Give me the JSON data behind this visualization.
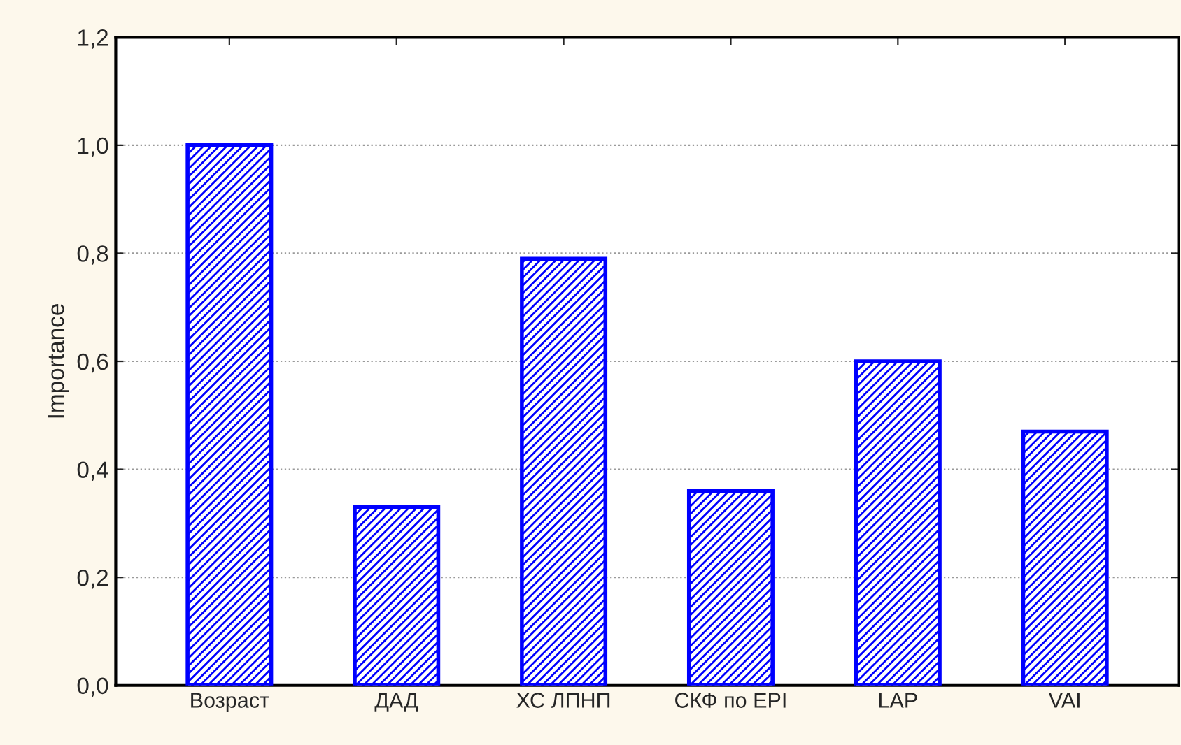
{
  "chart_data": {
    "type": "bar",
    "ylabel": "Importance",
    "categories": [
      "Возраст",
      "ДАД",
      "ХС ЛПНП",
      "СКФ по EPI",
      "LAP",
      "VAI"
    ],
    "values": [
      1.0,
      0.33,
      0.79,
      0.36,
      0.6,
      0.47
    ],
    "color": "#0000ff",
    "ylim": [
      0,
      1.2
    ],
    "yticks": [
      {
        "value": 0,
        "label": "0,0"
      },
      {
        "value": 0.2,
        "label": "0,2"
      },
      {
        "value": 0.4,
        "label": "0,4"
      },
      {
        "value": 0.6,
        "label": "0,6"
      },
      {
        "value": 0.8,
        "label": "0,8"
      },
      {
        "value": 1.0,
        "label": "1,0"
      },
      {
        "value": 1.2,
        "label": "1,2"
      }
    ],
    "grid": "y"
  }
}
